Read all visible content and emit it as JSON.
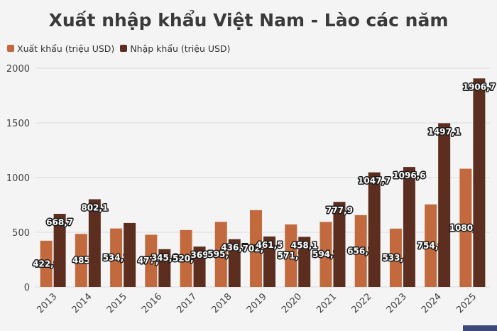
{
  "chart_data": {
    "type": "bar",
    "title": "Xuất nhập khẩu Việt Nam - Lào các năm",
    "categories": [
      "2013",
      "2014",
      "2015",
      "2016",
      "2017",
      "2018",
      "2019",
      "2020",
      "2021",
      "2022",
      "2023",
      "2024",
      "2025"
    ],
    "series": [
      {
        "name": "Xuất khẩu (triệu USD)",
        "color": "#c26a3d",
        "values": [
          422.9,
          485,
          534.7,
          477.7,
          520.4,
          595.2,
          702.2,
          571.7,
          594.7,
          656.7,
          533.4,
          754.9,
          1080.9
        ],
        "labels": [
          "422,9",
          "485",
          "534,7",
          "477,7",
          "520,4",
          "595,2",
          "702,2",
          "571,7",
          "594,7",
          "656,7",
          "533,4",
          "754,9",
          "1080,9"
        ],
        "label_shown": [
          true,
          true,
          true,
          true,
          true,
          true,
          true,
          true,
          true,
          true,
          true,
          true,
          true
        ]
      },
      {
        "name": "Nhập khẩu (triệu USD)",
        "color": "#5c2e1f",
        "values": [
          668.7,
          802.1,
          585,
          345.6,
          369,
          436.7,
          461.5,
          458.1,
          777.9,
          1047.7,
          1096.6,
          1497.1,
          1906.7
        ],
        "labels": [
          "668,7",
          "802,1",
          "",
          "345,6",
          "369",
          "436,7",
          "461,5",
          "458,1",
          "777,9",
          "1047,7",
          "1096,6",
          "1497,1",
          "1906,7"
        ],
        "label_shown": [
          true,
          true,
          false,
          true,
          true,
          true,
          true,
          true,
          true,
          true,
          true,
          true,
          true
        ]
      }
    ],
    "ylim": [
      0,
      2000
    ],
    "yticks": [
      0,
      500,
      1000,
      1500,
      2000
    ],
    "grid": true,
    "legend_position": "top-left"
  }
}
